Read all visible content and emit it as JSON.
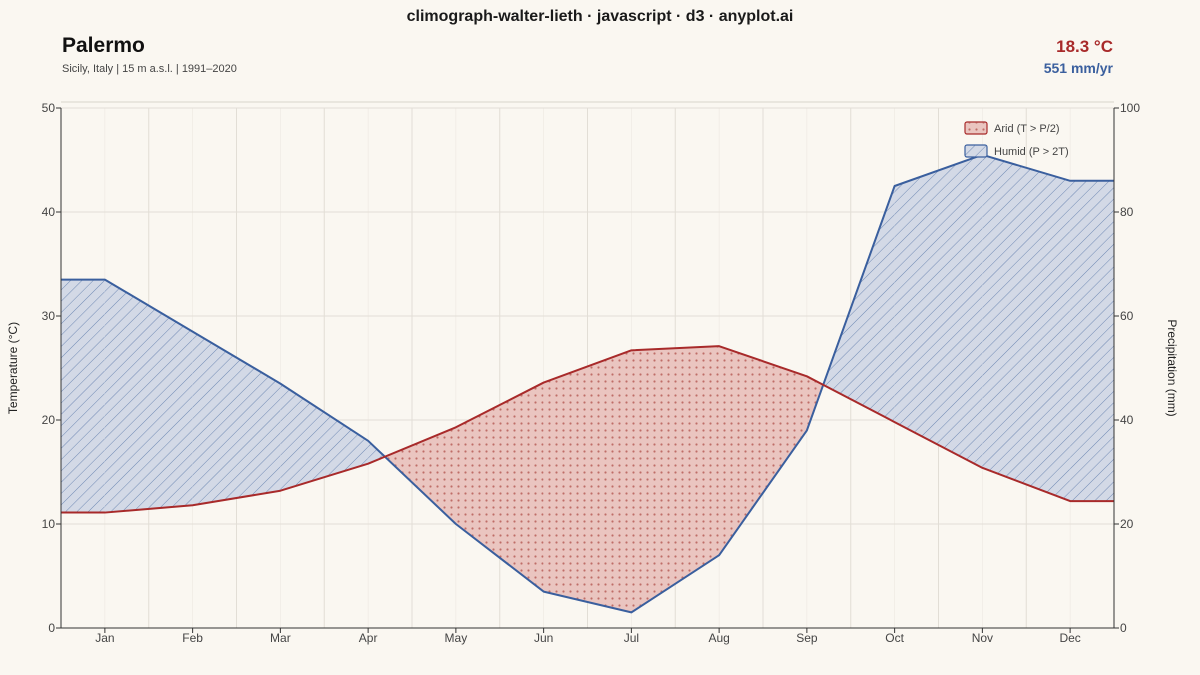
{
  "header": {
    "title": "climograph-walter-lieth · javascript · d3 · anyplot.ai"
  },
  "station": {
    "name": "Palermo",
    "meta": "Sicily, Italy | 15 m a.s.l. | 1991–2020",
    "annual_temp": "18.3 °C",
    "annual_precip": "551 mm/yr"
  },
  "colors": {
    "temperature": "#a82a2a",
    "precipitation": "#3a5f9e",
    "arid_fill": "#eac5c0",
    "humid_fill": "#d3d9e6",
    "grid": "#e2ded6",
    "background": "#faf7f1"
  },
  "chart_data": {
    "type": "line",
    "categories": [
      "Jan",
      "Feb",
      "Mar",
      "Apr",
      "May",
      "Jun",
      "Jul",
      "Aug",
      "Sep",
      "Oct",
      "Nov",
      "Dec"
    ],
    "series": [
      {
        "axis": "left",
        "values": [
          11.1,
          11.8,
          13.2,
          15.8,
          19.3,
          23.6,
          26.7,
          27.1,
          24.2,
          19.8,
          15.4,
          12.2
        ]
      },
      {
        "axis": "right",
        "values": [
          67,
          57,
          47,
          36,
          20,
          7,
          3,
          14,
          38,
          85,
          91,
          86
        ]
      }
    ],
    "ylabel": "Temperature (°C)",
    "y2label": "Precipitation (mm)",
    "ylim": [
      0,
      50
    ],
    "y2lim": [
      0,
      100
    ],
    "yticks": [
      0,
      10,
      20,
      30,
      40,
      50
    ],
    "y2ticks": [
      0,
      20,
      40,
      60,
      80,
      100
    ],
    "grid": true,
    "legend": {
      "position": "top-right",
      "items": [
        {
          "key": "arid",
          "label": "Arid (T > P/2)"
        },
        {
          "key": "humid",
          "label": "Humid (P > 2T)"
        }
      ]
    }
  }
}
